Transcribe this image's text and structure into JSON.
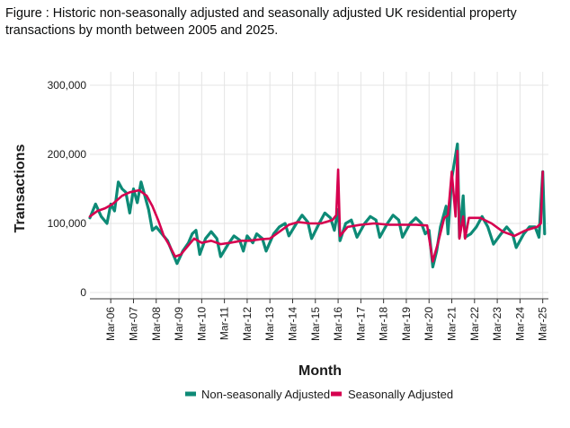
{
  "figure": {
    "caption": "Figure : Historic non-seasonally adjusted and seasonally adjusted UK residential property transactions by month between 2005 and 2025."
  },
  "colors": {
    "non_seasonal": "#0d8a76",
    "seasonal": "#d6004f",
    "grid": "#e4e4e4",
    "axis": "#333333"
  },
  "chart_data": {
    "type": "line",
    "title": "",
    "xlabel": "Month",
    "ylabel": "Transactions",
    "ylim": [
      0,
      300000
    ],
    "xlim": [
      "2005-04",
      "2025-06"
    ],
    "yticks": [
      0,
      100000,
      200000,
      300000
    ],
    "ytick_labels": [
      "0",
      "100,000",
      "200,000",
      "300,000"
    ],
    "xticks": [
      "2006-03",
      "2007-03",
      "2008-03",
      "2009-03",
      "2010-03",
      "2011-03",
      "2012-03",
      "2013-03",
      "2014-03",
      "2015-03",
      "2016-03",
      "2017-03",
      "2018-03",
      "2019-03",
      "2020-03",
      "2021-03",
      "2022-03",
      "2023-03",
      "2024-03",
      "2025-03"
    ],
    "xtick_labels": [
      "Mar-06",
      "Mar-07",
      "Mar-08",
      "Mar-09",
      "Mar-10",
      "Mar-11",
      "Mar-12",
      "Mar-13",
      "Mar-14",
      "Mar-15",
      "Mar-16",
      "Mar-17",
      "Mar-18",
      "Mar-19",
      "Mar-20",
      "Mar-21",
      "Mar-22",
      "Mar-23",
      "Mar-24",
      "Mar-25"
    ],
    "grid": true,
    "legend_position": "bottom",
    "series": [
      {
        "name": "Non-seasonally Adjusted",
        "color": "#0d8a76",
        "points": [
          [
            "2005-04",
            108000
          ],
          [
            "2005-07",
            128000
          ],
          [
            "2005-10",
            110000
          ],
          [
            "2006-01",
            100000
          ],
          [
            "2006-03",
            128000
          ],
          [
            "2006-05",
            118000
          ],
          [
            "2006-07",
            160000
          ],
          [
            "2006-09",
            150000
          ],
          [
            "2006-11",
            145000
          ],
          [
            "2007-01",
            115000
          ],
          [
            "2007-03",
            150000
          ],
          [
            "2007-05",
            130000
          ],
          [
            "2007-07",
            160000
          ],
          [
            "2007-09",
            140000
          ],
          [
            "2007-11",
            120000
          ],
          [
            "2008-01",
            90000
          ],
          [
            "2008-03",
            95000
          ],
          [
            "2008-06",
            85000
          ],
          [
            "2008-09",
            75000
          ],
          [
            "2008-12",
            55000
          ],
          [
            "2009-02",
            42000
          ],
          [
            "2009-05",
            60000
          ],
          [
            "2009-08",
            72000
          ],
          [
            "2009-10",
            85000
          ],
          [
            "2009-12",
            90000
          ],
          [
            "2010-02",
            55000
          ],
          [
            "2010-05",
            78000
          ],
          [
            "2010-08",
            88000
          ],
          [
            "2010-11",
            78000
          ],
          [
            "2011-01",
            52000
          ],
          [
            "2011-05",
            70000
          ],
          [
            "2011-08",
            82000
          ],
          [
            "2011-11",
            76000
          ],
          [
            "2012-01",
            60000
          ],
          [
            "2012-03",
            82000
          ],
          [
            "2012-06",
            72000
          ],
          [
            "2012-08",
            85000
          ],
          [
            "2012-11",
            78000
          ],
          [
            "2013-01",
            60000
          ],
          [
            "2013-05",
            85000
          ],
          [
            "2013-08",
            95000
          ],
          [
            "2013-11",
            100000
          ],
          [
            "2014-01",
            82000
          ],
          [
            "2014-05",
            100000
          ],
          [
            "2014-08",
            112000
          ],
          [
            "2014-11",
            102000
          ],
          [
            "2015-01",
            78000
          ],
          [
            "2015-05",
            100000
          ],
          [
            "2015-08",
            115000
          ],
          [
            "2015-11",
            108000
          ],
          [
            "2016-01",
            90000
          ],
          [
            "2016-03",
            120000
          ],
          [
            "2016-04",
            75000
          ],
          [
            "2016-07",
            100000
          ],
          [
            "2016-10",
            105000
          ],
          [
            "2017-01",
            80000
          ],
          [
            "2017-05",
            100000
          ],
          [
            "2017-08",
            110000
          ],
          [
            "2017-11",
            105000
          ],
          [
            "2018-01",
            80000
          ],
          [
            "2018-05",
            100000
          ],
          [
            "2018-08",
            112000
          ],
          [
            "2018-11",
            105000
          ],
          [
            "2019-01",
            80000
          ],
          [
            "2019-05",
            100000
          ],
          [
            "2019-08",
            108000
          ],
          [
            "2019-11",
            100000
          ],
          [
            "2020-01",
            85000
          ],
          [
            "2020-03",
            90000
          ],
          [
            "2020-05",
            37000
          ],
          [
            "2020-07",
            60000
          ],
          [
            "2020-09",
            95000
          ],
          [
            "2020-12",
            125000
          ],
          [
            "2021-01",
            85000
          ],
          [
            "2021-03",
            165000
          ],
          [
            "2021-06",
            215000
          ],
          [
            "2021-07",
            80000
          ],
          [
            "2021-09",
            140000
          ],
          [
            "2021-10",
            80000
          ],
          [
            "2022-01",
            85000
          ],
          [
            "2022-04",
            95000
          ],
          [
            "2022-07",
            110000
          ],
          [
            "2022-10",
            95000
          ],
          [
            "2023-01",
            70000
          ],
          [
            "2023-05",
            85000
          ],
          [
            "2023-08",
            95000
          ],
          [
            "2023-11",
            85000
          ],
          [
            "2024-01",
            65000
          ],
          [
            "2024-05",
            85000
          ],
          [
            "2024-08",
            95000
          ],
          [
            "2024-11",
            95000
          ],
          [
            "2025-01",
            80000
          ],
          [
            "2025-03",
            175000
          ],
          [
            "2025-04",
            85000
          ]
        ]
      },
      {
        "name": "Seasonally Adjusted",
        "color": "#d6004f",
        "points": [
          [
            "2005-04",
            110000
          ],
          [
            "2005-08",
            118000
          ],
          [
            "2005-12",
            122000
          ],
          [
            "2006-04",
            128000
          ],
          [
            "2006-09",
            140000
          ],
          [
            "2007-01",
            145000
          ],
          [
            "2007-06",
            148000
          ],
          [
            "2007-10",
            140000
          ],
          [
            "2008-01",
            125000
          ],
          [
            "2008-04",
            105000
          ],
          [
            "2008-07",
            82000
          ],
          [
            "2008-10",
            68000
          ],
          [
            "2009-01",
            52000
          ],
          [
            "2009-04",
            55000
          ],
          [
            "2009-07",
            65000
          ],
          [
            "2009-11",
            78000
          ],
          [
            "2010-03",
            72000
          ],
          [
            "2010-08",
            75000
          ],
          [
            "2011-01",
            70000
          ],
          [
            "2011-06",
            72000
          ],
          [
            "2011-12",
            75000
          ],
          [
            "2012-04",
            75000
          ],
          [
            "2012-10",
            77000
          ],
          [
            "2013-03",
            78000
          ],
          [
            "2013-09",
            90000
          ],
          [
            "2014-01",
            98000
          ],
          [
            "2014-06",
            102000
          ],
          [
            "2014-12",
            100000
          ],
          [
            "2015-06",
            100000
          ],
          [
            "2015-12",
            105000
          ],
          [
            "2016-02",
            112000
          ],
          [
            "2016-03",
            178000
          ],
          [
            "2016-04",
            82000
          ],
          [
            "2016-08",
            95000
          ],
          [
            "2017-03",
            98000
          ],
          [
            "2017-10",
            100000
          ],
          [
            "2018-06",
            98000
          ],
          [
            "2019-01",
            98000
          ],
          [
            "2019-08",
            98000
          ],
          [
            "2020-02",
            97000
          ],
          [
            "2020-05",
            45000
          ],
          [
            "2020-08",
            75000
          ],
          [
            "2020-11",
            108000
          ],
          [
            "2021-01",
            112000
          ],
          [
            "2021-03",
            175000
          ],
          [
            "2021-05",
            110000
          ],
          [
            "2021-06",
            205000
          ],
          [
            "2021-07",
            78000
          ],
          [
            "2021-09",
            110000
          ],
          [
            "2021-10",
            78000
          ],
          [
            "2021-12",
            108000
          ],
          [
            "2022-06",
            108000
          ],
          [
            "2022-12",
            100000
          ],
          [
            "2023-06",
            88000
          ],
          [
            "2023-12",
            82000
          ],
          [
            "2024-06",
            90000
          ],
          [
            "2024-12",
            95000
          ],
          [
            "2025-02",
            100000
          ],
          [
            "2025-03",
            175000
          ]
        ]
      }
    ]
  }
}
